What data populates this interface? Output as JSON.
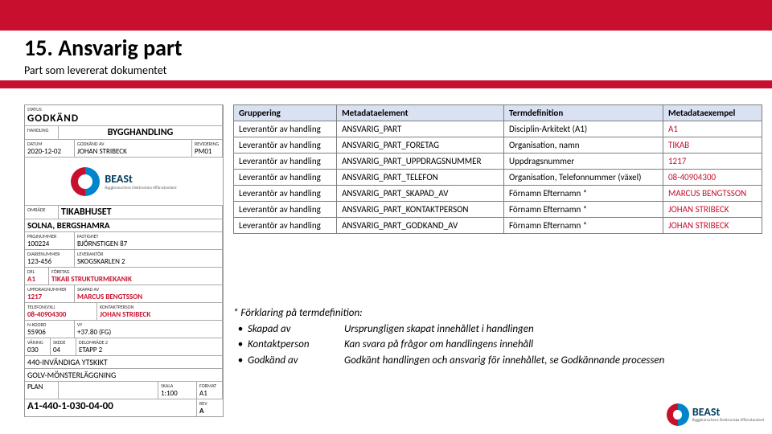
{
  "header": {
    "title_prefix": "15.",
    "title": "Ansvarig part",
    "subtitle": "Part som levererat dokumentet"
  },
  "left_form": {
    "status_label": "STATUS",
    "status_value": "GODKÄND",
    "handling_label": "HANDLING",
    "handling_value": "BYGGHANDLING",
    "date_label": "DATUM",
    "date_value": "2020-12-02",
    "beskrivning_label": "GODKÄND AV",
    "beskrivning_value": "JOHAN STRIBECK",
    "revidering_label": "REVIDERING",
    "revidering_value": "PM01",
    "beast_title": "BEASt",
    "beast_sub": "Byggbranschens Elektroniska Affärsstandard",
    "omrade_label": "OMRÅDE",
    "omrade_value": "TIKABHUSET",
    "omrade2_value": "SOLNA, BERGSHAMRA",
    "proj_label": "PROJNUMMER",
    "proj_value": "100224",
    "fastighet_label": "FASTIGHET",
    "fastighet_value": "BJÖRNSTIGEN 87",
    "diarienummer_label": "DIARIENUMMER",
    "diarienummer_value": "123-456",
    "lev_label": "LEVERANTÖR",
    "lev_value": "SKOGSKARLEN 2",
    "disc_label": "DEL",
    "disc_value": "A1",
    "foretag_label": "FÖRETAG",
    "foretag_value": "TIKAB STRUKTURMEKANIK",
    "uppdrag_label": "UPPDRAGNUMMER",
    "uppdrag_value": "1217",
    "skapad_label": "SKAPAD AV",
    "skapad_value": "MARCUS BENGTSSON",
    "tel_label": "TELEFON(VXL)",
    "tel_value": "08-40904300",
    "kontakt_label": "KONTAKTPERSON",
    "kontakt_value": "JOHAN STRIBECK",
    "koord_label": "N-KOORD",
    "koord_value": "55906",
    "hojd_label": "VY",
    "hojd_value": "+37.80 (FG)",
    "vykod_label": "VÅNING",
    "vykod_value": "030",
    "skede_label": "SKEDE",
    "skede_value": "04",
    "delomrade_label": "DELOMRÅDE 2",
    "delomrade_value": "ETAPP 2",
    "benamning1": "440-INVÄNDIGA YTSKIKT",
    "benamning2": "GOLV-MÖNSTERLÄGGNING",
    "plan_label": "PLAN",
    "skala_label": "SKALA",
    "skala_value": "1:100",
    "format_label": "FORMAT",
    "format_value": "A1",
    "nummer_value": "A1-440-1-030-04-00",
    "rev_label": "REV",
    "rev_value": "A"
  },
  "table": {
    "headers": [
      "Gruppering",
      "Metadataelement",
      "Termdefinition",
      "Metadataexempel"
    ],
    "rows": [
      [
        "Leverantör av handling",
        "ANSVARIG_PART",
        "Disciplin-Arkitekt (A1)",
        "A1"
      ],
      [
        "Leverantör av handling",
        "ANSVARIG_PART_FORETAG",
        "Organisation, namn",
        "TIKAB"
      ],
      [
        "Leverantör av handling",
        "ANSVARIG_PART_UPPDRAGSNUMMER",
        "Uppdragsnummer",
        "1217"
      ],
      [
        "Leverantör av handling",
        "ANSVARIG_PART_TELEFON",
        "Organisation, Telefonnummer (växel)",
        "08-40904300"
      ],
      [
        "Leverantör av handling",
        "ANSVARIG_PART_SKAPAD_AV",
        "Förnamn Efternamn *",
        "MARCUS BENGTSSON"
      ],
      [
        "Leverantör av handling",
        "ANSVARIG_PART_KONTAKTPERSON",
        "Förnamn Efternamn *",
        "JOHAN STRIBECK"
      ],
      [
        "Leverantör av handling",
        "ANSVARIG_PART_GODKAND_AV",
        "Förnamn Efternamn *",
        "JOHAN STRIBECK"
      ]
    ]
  },
  "footnote": {
    "intro": "* Förklaring på termdefinition:",
    "items": [
      {
        "term": "Skapad av",
        "def": "Ursprungligen skapat innehållet i handlingen"
      },
      {
        "term": "Kontaktperson",
        "def": "Kan svara på frågor om handlingens innehåll"
      },
      {
        "term": "Godkänd av",
        "def": "Godkänt handlingen och ansvarig för innehållet, se Godkännande processen"
      }
    ]
  },
  "corner_logo": {
    "title": "BEASt",
    "sub": "Byggbranschens Elektroniska Affärsstandard"
  }
}
